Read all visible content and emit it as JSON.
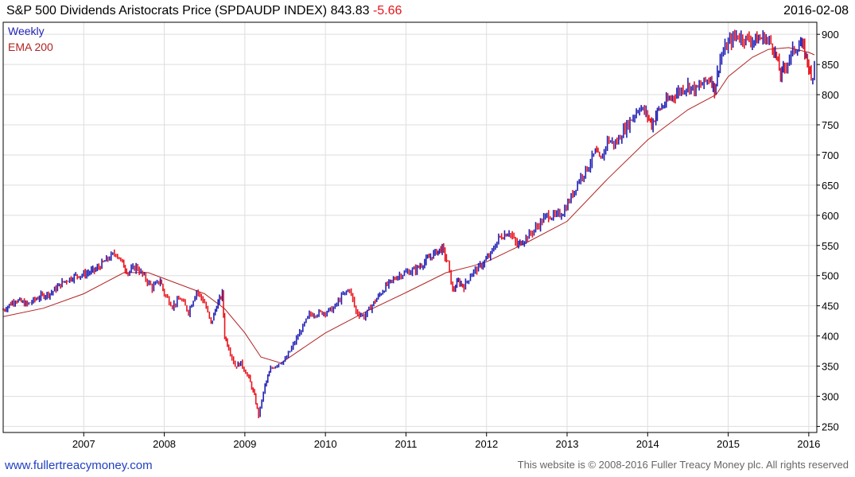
{
  "header": {
    "title": "S&P 500 Dividends Aristocrats Price  (SPDAUDP INDEX)",
    "price": "843.83",
    "change": "-5.66",
    "date": "2016-02-08"
  },
  "legend": {
    "weekly": "Weekly",
    "ema": "EMA 200"
  },
  "footer": {
    "site": "www.fullertreacymoney.com",
    "copyright": "This website is © 2008-2016 Fuller Treacy Money plc. All rights reserved"
  },
  "colors": {
    "up": "#1f1fb4",
    "down": "#e8141c",
    "ema": "#b22222",
    "grid": "#dedede"
  },
  "chart_data": {
    "type": "line",
    "title": "S&P 500 Dividends Aristocrats Price (SPDAUDP INDEX)",
    "frequency": "Weekly",
    "ylim": [
      240,
      920
    ],
    "xlim": [
      2006.0,
      2016.1
    ],
    "y_ticks": [
      250,
      300,
      350,
      400,
      450,
      500,
      550,
      600,
      650,
      700,
      750,
      800,
      850,
      900
    ],
    "x_ticks": [
      "2007",
      "2008",
      "2009",
      "2010",
      "2011",
      "2012",
      "2013",
      "2014",
      "2015",
      "2016"
    ],
    "x_tick_values": [
      2007,
      2008,
      2009,
      2010,
      2011,
      2012,
      2013,
      2014,
      2015,
      2016
    ],
    "series": [
      {
        "name": "Weekly",
        "style": "bars",
        "points": [
          [
            2006.0,
            443
          ],
          [
            2006.15,
            460
          ],
          [
            2006.3,
            452
          ],
          [
            2006.45,
            465
          ],
          [
            2006.6,
            472
          ],
          [
            2006.75,
            490
          ],
          [
            2006.9,
            500
          ],
          [
            2007.0,
            502
          ],
          [
            2007.15,
            510
          ],
          [
            2007.3,
            528
          ],
          [
            2007.4,
            538
          ],
          [
            2007.48,
            520
          ],
          [
            2007.55,
            505
          ],
          [
            2007.65,
            515
          ],
          [
            2007.75,
            498
          ],
          [
            2007.85,
            480
          ],
          [
            2007.95,
            492
          ],
          [
            2008.0,
            470
          ],
          [
            2008.1,
            450
          ],
          [
            2008.2,
            462
          ],
          [
            2008.3,
            440
          ],
          [
            2008.4,
            475
          ],
          [
            2008.5,
            455
          ],
          [
            2008.58,
            420
          ],
          [
            2008.65,
            450
          ],
          [
            2008.72,
            470
          ],
          [
            2008.75,
            400
          ],
          [
            2008.8,
            380
          ],
          [
            2008.88,
            350
          ],
          [
            2008.95,
            355
          ],
          [
            2009.05,
            330
          ],
          [
            2009.12,
            300
          ],
          [
            2009.17,
            268
          ],
          [
            2009.25,
            318
          ],
          [
            2009.32,
            345
          ],
          [
            2009.42,
            355
          ],
          [
            2009.5,
            360
          ],
          [
            2009.6,
            385
          ],
          [
            2009.7,
            410
          ],
          [
            2009.8,
            435
          ],
          [
            2010.0,
            440
          ],
          [
            2010.1,
            445
          ],
          [
            2010.2,
            465
          ],
          [
            2010.3,
            478
          ],
          [
            2010.38,
            440
          ],
          [
            2010.48,
            432
          ],
          [
            2010.6,
            455
          ],
          [
            2010.75,
            482
          ],
          [
            2010.9,
            500
          ],
          [
            2011.0,
            505
          ],
          [
            2011.12,
            510
          ],
          [
            2011.25,
            525
          ],
          [
            2011.38,
            540
          ],
          [
            2011.45,
            545
          ],
          [
            2011.52,
            520
          ],
          [
            2011.58,
            475
          ],
          [
            2011.65,
            490
          ],
          [
            2011.72,
            482
          ],
          [
            2011.82,
            505
          ],
          [
            2011.92,
            515
          ],
          [
            2012.05,
            535
          ],
          [
            2012.15,
            562
          ],
          [
            2012.28,
            573
          ],
          [
            2012.38,
            550
          ],
          [
            2012.45,
            558
          ],
          [
            2012.55,
            570
          ],
          [
            2012.65,
            585
          ],
          [
            2012.75,
            600
          ],
          [
            2012.85,
            598
          ],
          [
            2012.95,
            605
          ],
          [
            2013.05,
            630
          ],
          [
            2013.15,
            660
          ],
          [
            2013.25,
            678
          ],
          [
            2013.35,
            705
          ],
          [
            2013.42,
            690
          ],
          [
            2013.5,
            725
          ],
          [
            2013.6,
            718
          ],
          [
            2013.7,
            740
          ],
          [
            2013.8,
            760
          ],
          [
            2013.9,
            780
          ],
          [
            2014.0,
            765
          ],
          [
            2014.05,
            750
          ],
          [
            2014.12,
            772
          ],
          [
            2014.25,
            790
          ],
          [
            2014.38,
            805
          ],
          [
            2014.5,
            815
          ],
          [
            2014.6,
            808
          ],
          [
            2014.68,
            818
          ],
          [
            2014.78,
            828
          ],
          [
            2014.83,
            808
          ],
          [
            2014.9,
            860
          ],
          [
            2015.0,
            885
          ],
          [
            2015.1,
            898
          ],
          [
            2015.2,
            893
          ],
          [
            2015.32,
            890
          ],
          [
            2015.45,
            895
          ],
          [
            2015.55,
            882
          ],
          [
            2015.6,
            860
          ],
          [
            2015.65,
            832
          ],
          [
            2015.7,
            845
          ],
          [
            2015.8,
            872
          ],
          [
            2015.9,
            885
          ],
          [
            2015.95,
            870
          ],
          [
            2016.0,
            848
          ],
          [
            2016.03,
            822
          ],
          [
            2016.07,
            843.83
          ]
        ]
      },
      {
        "name": "EMA 200",
        "style": "line",
        "points": [
          [
            2006.0,
            432
          ],
          [
            2006.5,
            446
          ],
          [
            2007.0,
            470
          ],
          [
            2007.5,
            505
          ],
          [
            2007.8,
            505
          ],
          [
            2008.0,
            495
          ],
          [
            2008.5,
            470
          ],
          [
            2008.75,
            445
          ],
          [
            2009.0,
            405
          ],
          [
            2009.2,
            365
          ],
          [
            2009.45,
            355
          ],
          [
            2009.7,
            378
          ],
          [
            2010.0,
            405
          ],
          [
            2010.5,
            440
          ],
          [
            2011.0,
            472
          ],
          [
            2011.5,
            505
          ],
          [
            2011.8,
            515
          ],
          [
            2012.0,
            523
          ],
          [
            2012.5,
            555
          ],
          [
            2013.0,
            590
          ],
          [
            2013.5,
            660
          ],
          [
            2014.0,
            725
          ],
          [
            2014.5,
            775
          ],
          [
            2014.85,
            800
          ],
          [
            2015.0,
            830
          ],
          [
            2015.3,
            862
          ],
          [
            2015.5,
            875
          ],
          [
            2015.75,
            878
          ],
          [
            2016.0,
            870
          ],
          [
            2016.07,
            866
          ]
        ]
      }
    ]
  }
}
